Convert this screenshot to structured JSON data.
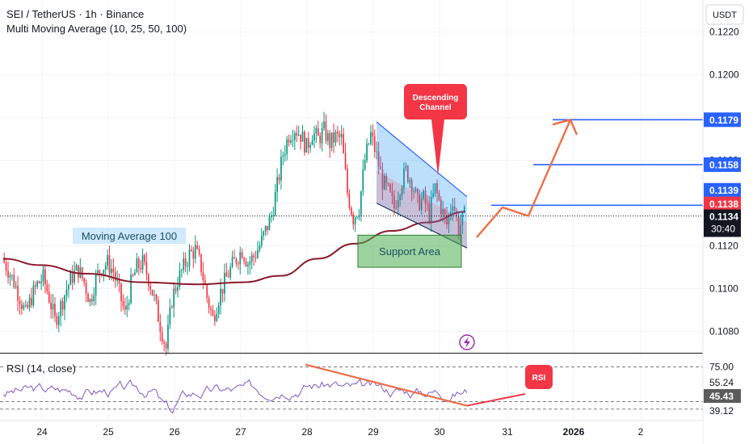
{
  "header": {
    "title": "SEI / TetherUS · 1h · Binance",
    "indicator": "Multi Moving Average (10, 25, 50, 100)"
  },
  "currency_badge": "USDT",
  "price_axis": {
    "ticks": [
      "0.1220",
      "0.1200",
      "0.1180",
      "0.1160",
      "0.1140",
      "0.1120",
      "0.1100",
      "0.1080"
    ]
  },
  "price_tags": {
    "target_3": "0.1179",
    "target_2": "0.1158",
    "target_1": "0.1139",
    "current": "0.1138",
    "last": "0.1134",
    "countdown": "30:40"
  },
  "x_axis": {
    "ticks": [
      "24",
      "25",
      "26",
      "27",
      "28",
      "29",
      "30",
      "31",
      "2026",
      "2"
    ]
  },
  "annotations": {
    "ma_label": "Moving Average 100",
    "support_label": "Support Area",
    "channel_label_1": "Descending",
    "channel_label_2": "Channel",
    "rsi_label": "RSI"
  },
  "rsi_panel": {
    "title": "RSI (14, close)",
    "levels": [
      "75.00",
      "55.24",
      "45.43",
      "39.12"
    ]
  },
  "colors": {
    "up": "#089981",
    "down": "#f23645",
    "ma100": "#8b1a2b",
    "target_line": "#2962ff",
    "arrow": "#ef6c47",
    "rsi_line": "#7e57c2",
    "rsi_tag": "#5b5b5b",
    "support_fill": "#4caf50"
  },
  "chart_data": {
    "type": "candlestick",
    "y_scale": {
      "min": 0.107,
      "max": 0.1235
    },
    "x_axis_dates": [
      "24",
      "25",
      "26",
      "27",
      "28",
      "29",
      "30",
      "31",
      "2026",
      "2"
    ],
    "close_path": [
      0.1114,
      0.1109,
      0.1103,
      0.1096,
      0.1088,
      0.1096,
      0.1102,
      0.1105,
      0.1096,
      0.1085,
      0.1092,
      0.11,
      0.1106,
      0.1109,
      0.1103,
      0.1094,
      0.1105,
      0.111,
      0.1112,
      0.1108,
      0.1098,
      0.1088,
      0.1102,
      0.111,
      0.1112,
      0.1105,
      0.1095,
      0.1083,
      0.1072,
      0.1095,
      0.1104,
      0.111,
      0.1116,
      0.1118,
      0.111,
      0.1096,
      0.1086,
      0.1096,
      0.1103,
      0.1109,
      0.1114,
      0.1118,
      0.1112,
      0.1115,
      0.112,
      0.1127,
      0.1134,
      0.1148,
      0.1163,
      0.1172,
      0.1175,
      0.1172,
      0.1166,
      0.1173,
      0.117,
      0.1174,
      0.1168,
      0.1171,
      0.117,
      0.1145,
      0.1133,
      0.1138,
      0.116,
      0.1172,
      0.1162,
      0.115,
      0.1145,
      0.1138,
      0.1148,
      0.1155,
      0.115,
      0.114,
      0.1142,
      0.1135,
      0.1147,
      0.1138,
      0.113,
      0.1142,
      0.1128,
      0.1134
    ],
    "ma100": [
      [
        0,
        0.1114
      ],
      [
        0.08,
        0.1111
      ],
      [
        0.18,
        0.1107
      ],
      [
        0.3,
        0.1103
      ],
      [
        0.42,
        0.1102
      ],
      [
        0.52,
        0.1103
      ],
      [
        0.6,
        0.1106
      ],
      [
        0.68,
        0.1114
      ],
      [
        0.76,
        0.1121
      ],
      [
        0.84,
        0.1127
      ],
      [
        0.92,
        0.1131
      ],
      [
        1.0,
        0.1136
      ]
    ],
    "channel": {
      "upper": [
        [
          0.1178,
          0.1143
        ]
      ],
      "lower": [
        [
          0.114,
          0.1119
        ]
      ]
    },
    "support_area": {
      "top": 0.1125,
      "bottom": 0.111
    },
    "targets": [
      0.1139,
      0.1158,
      0.1179
    ],
    "projection": [
      0.1124,
      0.1138,
      0.1134,
      0.1179,
      0.1172
    ],
    "rsi": {
      "levels": [
        75.0,
        55.24,
        45.43,
        39.12
      ],
      "last": 45.43
    }
  }
}
